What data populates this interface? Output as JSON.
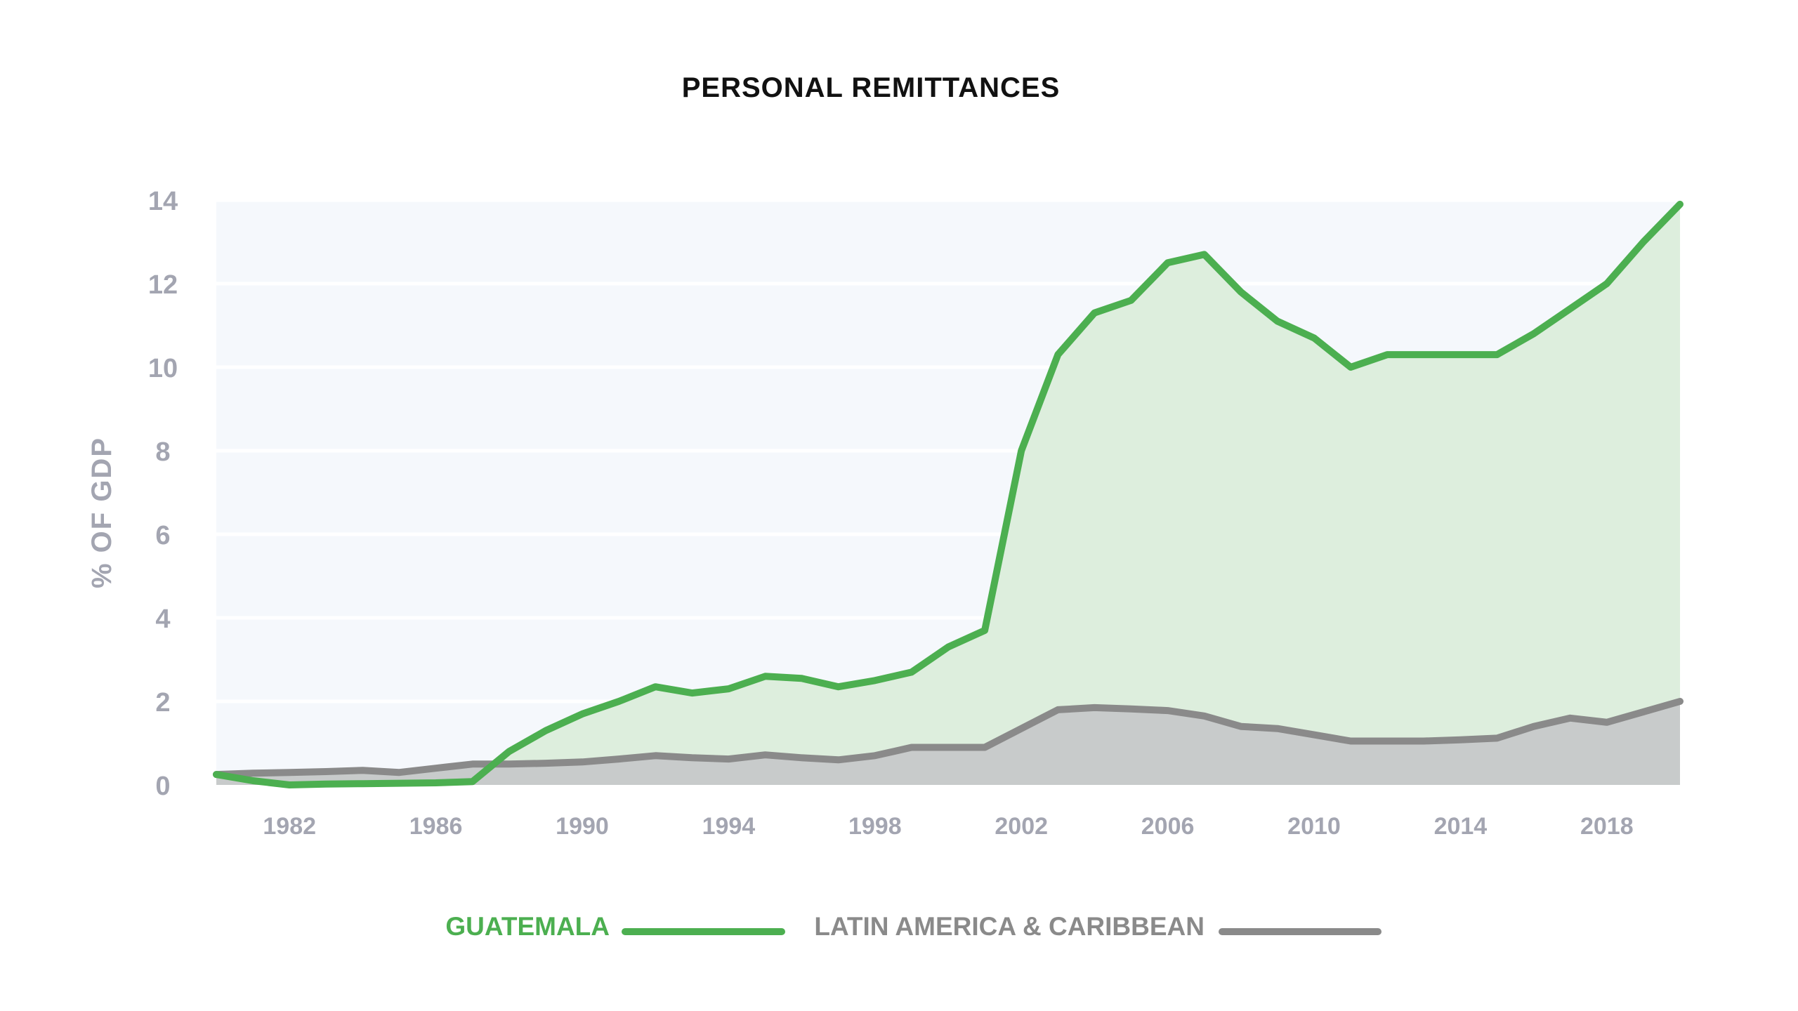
{
  "chart_data": {
    "type": "area",
    "title": "PERSONAL REMITTANCES",
    "ylabel": "% OF GDP",
    "xlabel": "",
    "xlim": [
      1980,
      2020
    ],
    "ylim": [
      0,
      14
    ],
    "yticks": [
      0,
      2,
      4,
      6,
      8,
      10,
      12,
      14
    ],
    "xticks": [
      1982,
      1986,
      1990,
      1994,
      1998,
      2002,
      2006,
      2010,
      2014,
      2018
    ],
    "grid": true,
    "legend_position": "bottom",
    "x": [
      1980,
      1981,
      1982,
      1983,
      1984,
      1985,
      1986,
      1987,
      1988,
      1989,
      1990,
      1991,
      1992,
      1993,
      1994,
      1995,
      1996,
      1997,
      1998,
      1999,
      2000,
      2001,
      2002,
      2003,
      2004,
      2005,
      2006,
      2007,
      2008,
      2009,
      2010,
      2011,
      2012,
      2013,
      2014,
      2015,
      2016,
      2017,
      2018,
      2019,
      2020
    ],
    "series": [
      {
        "name": "GUATEMALA",
        "color": "#4caf50",
        "values": [
          0.25,
          0.1,
          0.0,
          0.02,
          0.03,
          0.04,
          0.05,
          0.08,
          0.8,
          1.3,
          1.7,
          2.0,
          2.35,
          2.2,
          2.3,
          2.6,
          2.55,
          2.35,
          2.5,
          2.7,
          3.3,
          3.7,
          8.0,
          10.3,
          11.3,
          11.6,
          12.5,
          12.7,
          11.8,
          11.1,
          10.7,
          10.0,
          10.3,
          10.3,
          10.3,
          10.3,
          10.8,
          11.4,
          12.0,
          13.0,
          13.9
        ]
      },
      {
        "name": "LATIN AMERICA & CARIBBEAN",
        "color": "#8a8a8a",
        "values": [
          0.25,
          0.28,
          0.3,
          0.32,
          0.35,
          0.3,
          0.4,
          0.5,
          0.5,
          0.52,
          0.55,
          0.62,
          0.7,
          0.65,
          0.62,
          0.72,
          0.65,
          0.6,
          0.7,
          0.9,
          0.9,
          0.9,
          1.35,
          1.8,
          1.85,
          1.82,
          1.78,
          1.65,
          1.4,
          1.35,
          1.2,
          1.05,
          1.05,
          1.05,
          1.08,
          1.12,
          1.4,
          1.6,
          1.5,
          1.75,
          2.0
        ]
      }
    ]
  }
}
